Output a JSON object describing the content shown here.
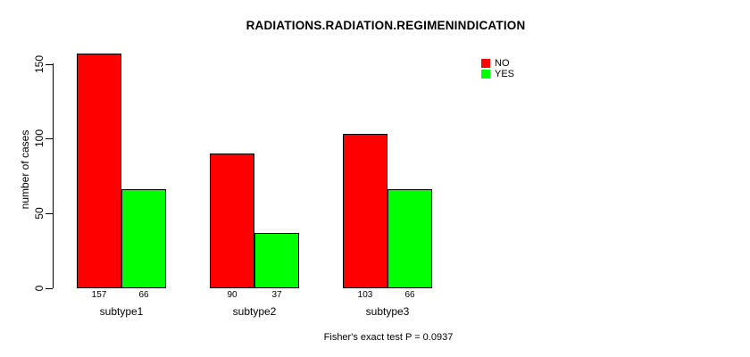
{
  "title": "RADIATIONS.RADIATION.REGIMENINDICATION",
  "chart_data": {
    "type": "bar",
    "title": "RADIATIONS.RADIATION.REGIMENINDICATION",
    "categories": [
      "subtype1",
      "subtype2",
      "subtype3"
    ],
    "series": [
      {
        "name": "NO",
        "color": "#ff0000",
        "values": [
          157,
          90,
          103
        ]
      },
      {
        "name": "YES",
        "color": "#00ff00",
        "values": [
          66,
          37,
          66
        ]
      }
    ],
    "value_labels": [
      [
        "157",
        "66"
      ],
      [
        "90",
        "37"
      ],
      [
        "103",
        "66"
      ]
    ],
    "xlabel": "",
    "ylabel": "number of cases",
    "yticks": [
      "0",
      "50",
      "100",
      "150"
    ],
    "ytick_values": [
      0,
      50,
      100,
      150
    ],
    "ylim": [
      0,
      157
    ],
    "grid": false,
    "legend_position": "top-right",
    "bar_border_color": "#000000",
    "annotation": "Fisher's exact test P = 0.0937"
  }
}
